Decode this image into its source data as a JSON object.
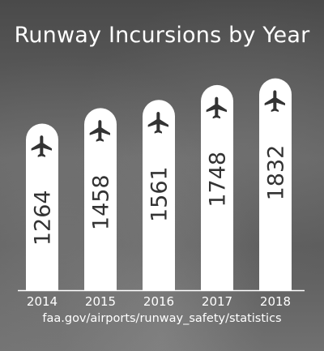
{
  "chart_data": {
    "type": "bar",
    "title": "Runway Incursions by Year",
    "categories": [
      "2014",
      "2015",
      "2016",
      "2017",
      "2018"
    ],
    "values": [
      1264,
      1458,
      1561,
      1748,
      1832
    ],
    "ylim": [
      800,
      1900
    ],
    "grid": false,
    "bar_color": "#ffffff",
    "text_color": "#333333",
    "bar_icon": "airplane-icon",
    "source": "faa.gov/airports/runway_safety/statistics"
  }
}
